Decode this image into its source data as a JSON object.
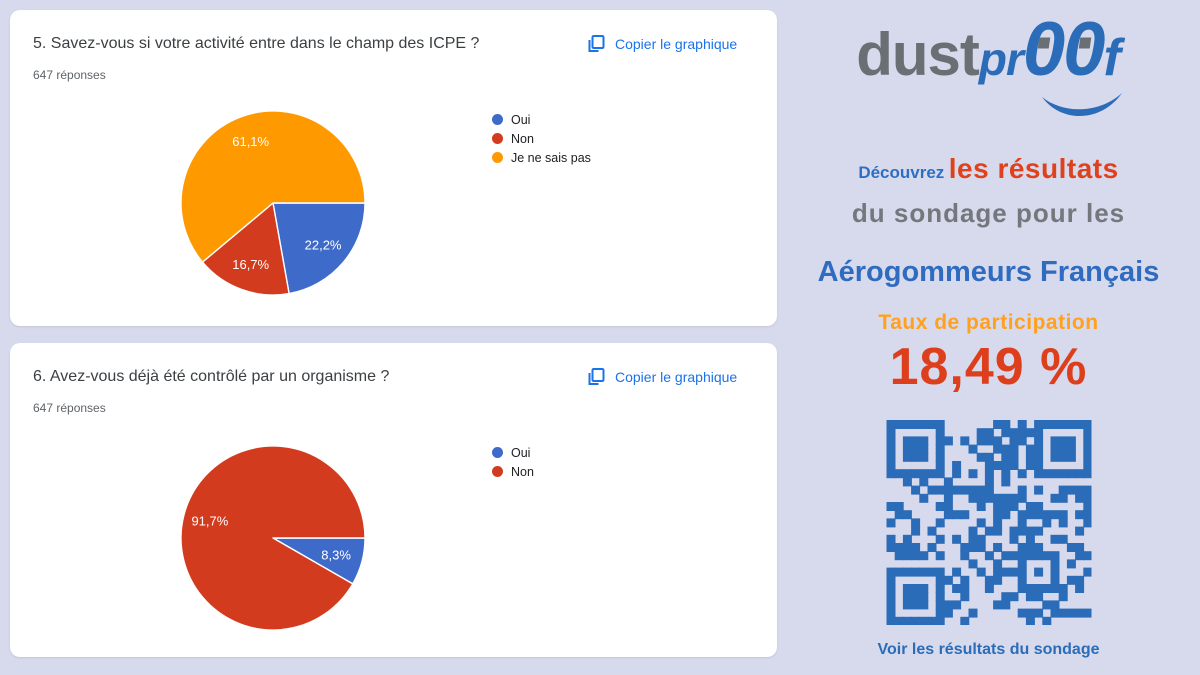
{
  "cards": [
    {
      "title": "5. Savez-vous si votre activité entre dans le champ des ICPE ?",
      "responses": "647 réponses",
      "copy_label": "Copier le graphique"
    },
    {
      "title": "6. Avez-vous déjà été contrôlé par un organisme ?",
      "responses": "647 réponses",
      "copy_label": "Copier le graphique"
    }
  ],
  "chart_data": [
    {
      "type": "pie",
      "question": "5. Savez-vous si votre activité entre dans le champ des ICPE ?",
      "responses_label": "647 réponses",
      "labels": [
        "Oui",
        "Non",
        "Je ne sais pas"
      ],
      "values": [
        22.2,
        16.7,
        61.1
      ],
      "display_values": [
        "22,2%",
        "16,7%",
        "61,1%"
      ],
      "colors": [
        "#3e6bc9",
        "#d33b1e",
        "#ff9900"
      ],
      "legend_position": "right",
      "start_angle_deg": 0,
      "direction": "clockwise"
    },
    {
      "type": "pie",
      "question": "6. Avez-vous déjà été contrôlé par un organisme ?",
      "responses_label": "647 réponses",
      "labels": [
        "Oui",
        "Non"
      ],
      "values": [
        8.3,
        91.7
      ],
      "display_values": [
        "8,3%",
        "91,7%"
      ],
      "colors": [
        "#3e6bc9",
        "#d33b1e"
      ],
      "legend_position": "right",
      "start_angle_deg": 0,
      "direction": "clockwise"
    }
  ],
  "sidebar": {
    "logo": {
      "part_dust": "dust",
      "part_pr": "pr",
      "zero": "0",
      "part_f": "f"
    },
    "headline": {
      "lead": "Découvrez",
      "emphasis": "les résultats",
      "line2": "du sondage pour les",
      "line3": "Aérogommeurs Français"
    },
    "participation": {
      "label": "Taux de participation",
      "value": "18,49 %"
    },
    "qr_caption": "Voir les résultats du sondage"
  },
  "theme": {
    "background": "#d7daed",
    "card_bg": "#ffffff",
    "link_blue": "#1a73e8",
    "brand_blue": "#2b6cb8",
    "brand_gray": "#6a6f74",
    "accent_red": "#e0411d",
    "accent_orange": "#ffa11f",
    "pie_blue": "#3e6bc9",
    "pie_red": "#d33b1e",
    "pie_orange": "#ff9900"
  }
}
